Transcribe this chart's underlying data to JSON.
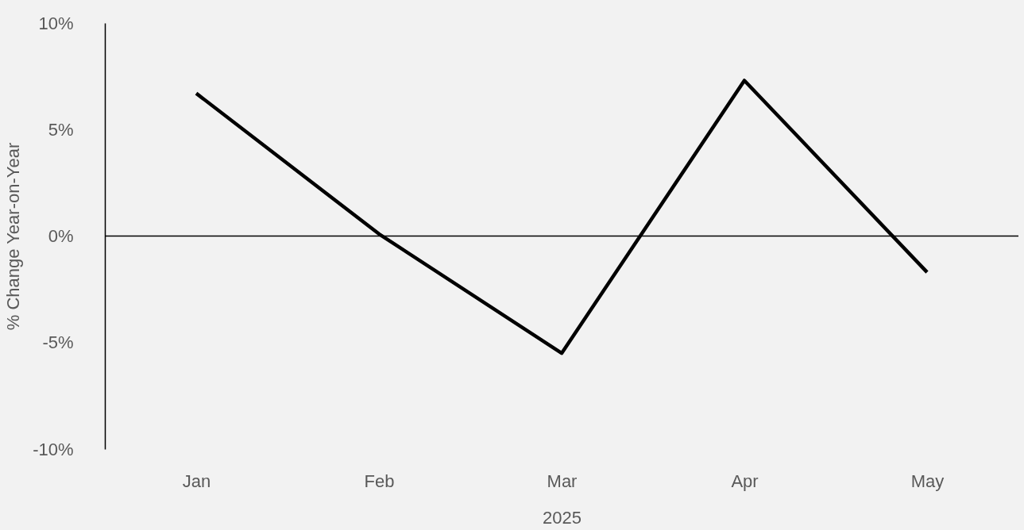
{
  "chart_data": {
    "type": "line",
    "categories": [
      "Jan",
      "Feb",
      "Mar",
      "Apr",
      "May"
    ],
    "series": [
      {
        "color": "#000000",
        "values": [
          6.7,
          0.1,
          -5.5,
          7.3,
          -1.7
        ]
      }
    ],
    "xlabel": "2025",
    "ylabel": "% Change Year-on-Year",
    "ylim": [
      -10,
      10
    ],
    "yticks": [
      {
        "value": -10,
        "label": "-10%"
      },
      {
        "value": -5,
        "label": "-5%"
      },
      {
        "value": 0,
        "label": "0%"
      },
      {
        "value": 5,
        "label": "5%"
      },
      {
        "value": 10,
        "label": "10%"
      }
    ],
    "ref_lines": [
      {
        "axis": "y",
        "value": 0,
        "color": "#000000"
      }
    ],
    "grid": false,
    "legend": false,
    "marker": "none",
    "line_style": "solid"
  }
}
